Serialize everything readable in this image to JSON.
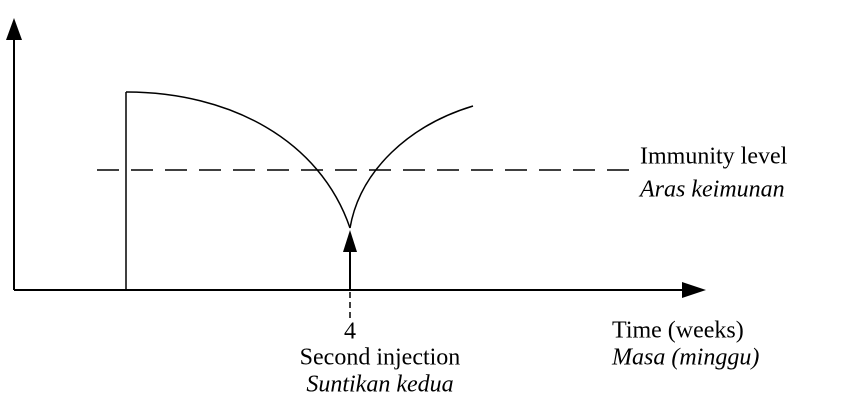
{
  "labels": {
    "immunity_level": "Immunity level",
    "immunity_level_ms": "Aras keimunan",
    "tick": "4",
    "second_injection": "Second injection",
    "second_injection_ms": "Suntikan kedua",
    "x_axis": "Time (weeks)",
    "x_axis_ms": "Masa (minggu)"
  }
}
